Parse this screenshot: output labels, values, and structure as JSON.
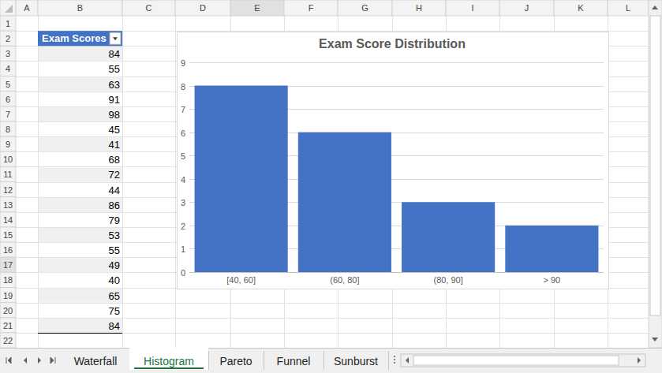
{
  "chart_data": {
    "type": "bar",
    "title": "Exam Score Distribution",
    "categories": [
      "[40, 60]",
      "(60, 80]",
      "(80, 90]",
      "> 90"
    ],
    "values": [
      8,
      6,
      3,
      2
    ],
    "color": "#4472c4",
    "ylim": [
      0,
      9
    ],
    "yticks": [
      0,
      1,
      2,
      3,
      4,
      5,
      6,
      7,
      8,
      9
    ],
    "grid": true
  },
  "sheet": {
    "columns": [
      "A",
      "B",
      "C",
      "D",
      "E",
      "F",
      "G",
      "H",
      "I",
      "J",
      "K",
      "L"
    ],
    "rows": [
      1,
      2,
      3,
      4,
      5,
      6,
      7,
      8,
      9,
      10,
      11,
      12,
      13,
      14,
      15,
      16,
      17,
      18,
      19,
      20,
      21,
      22
    ],
    "header": "Exam Scores",
    "values": [
      84,
      55,
      63,
      91,
      98,
      45,
      41,
      68,
      72,
      44,
      86,
      79,
      53,
      55,
      49,
      40,
      65,
      75,
      84
    ],
    "tabs": [
      "Waterfall",
      "Histogram",
      "Pareto",
      "Funnel",
      "Sunburst"
    ],
    "active_tab": "Histogram"
  }
}
